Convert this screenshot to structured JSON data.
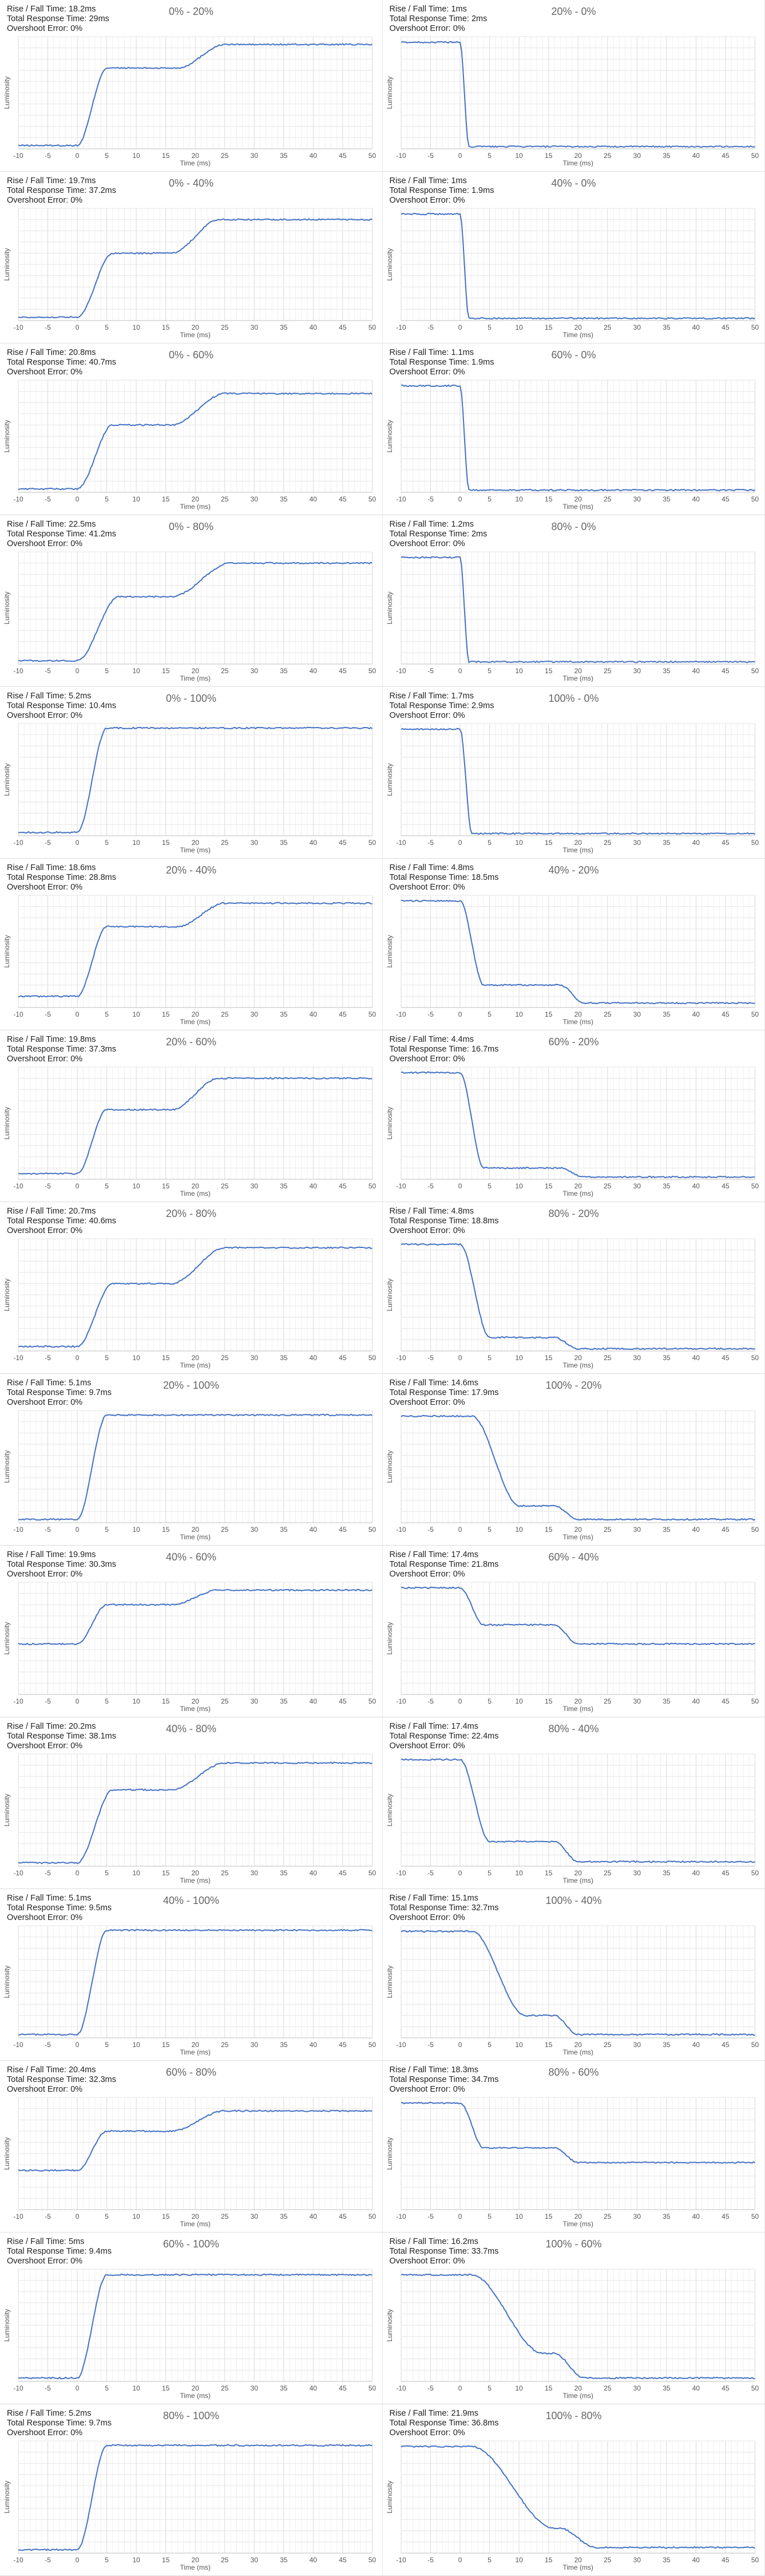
{
  "common": {
    "ylabel": "Luminosity",
    "xlabel": "Time (ms)",
    "rise_fall_label": "Rise / Fall Time:",
    "total_label": "Total Response Time:",
    "overshoot_label": "Overshoot Error:",
    "xticks": [
      "-10",
      "-5",
      "0",
      "5",
      "10",
      "15",
      "20",
      "25",
      "30",
      "35",
      "40",
      "45",
      "50"
    ],
    "line_color": "#4472c4"
  },
  "chart_data": [
    {
      "type": "line",
      "title": "0% - 20%",
      "rise_fall": "18.2ms",
      "total": "29ms",
      "overshoot": "0%",
      "start": 0.03,
      "end": 0.93,
      "onset": 0,
      "rise": 5,
      "plateau": 0.72,
      "second": 17,
      "second_dur": 8
    },
    {
      "type": "line",
      "title": "20% - 0%",
      "rise_fall": "1ms",
      "total": "2ms",
      "overshoot": "0%",
      "start": 0.95,
      "end": 0.02,
      "onset": 0,
      "rise": 1.5,
      "plateau": 0.02,
      "second": 20,
      "second_dur": 2
    },
    {
      "type": "line",
      "title": "0% - 40%",
      "rise_fall": "19.7ms",
      "total": "37.2ms",
      "overshoot": "0%",
      "start": 0.03,
      "end": 0.9,
      "onset": 0,
      "rise": 6,
      "plateau": 0.6,
      "second": 16,
      "second_dur": 8
    },
    {
      "type": "line",
      "title": "40% - 0%",
      "rise_fall": "1ms",
      "total": "1.9ms",
      "overshoot": "0%",
      "start": 0.95,
      "end": 0.02,
      "onset": 0,
      "rise": 1.5,
      "plateau": 0.02,
      "second": 20,
      "second_dur": 2
    },
    {
      "type": "line",
      "title": "0% - 60%",
      "rise_fall": "20.8ms",
      "total": "40.7ms",
      "overshoot": "0%",
      "start": 0.03,
      "end": 0.88,
      "onset": 0,
      "rise": 6,
      "plateau": 0.6,
      "second": 16,
      "second_dur": 9
    },
    {
      "type": "line",
      "title": "60% - 0%",
      "rise_fall": "1.1ms",
      "total": "1.9ms",
      "overshoot": "0%",
      "start": 0.95,
      "end": 0.02,
      "onset": 0,
      "rise": 1.5,
      "plateau": 0.02,
      "second": 20,
      "second_dur": 2
    },
    {
      "type": "line",
      "title": "0% - 80%",
      "rise_fall": "22.5ms",
      "total": "41.2ms",
      "overshoot": "0%",
      "start": 0.03,
      "end": 0.9,
      "onset": 0,
      "rise": 7,
      "plateau": 0.6,
      "second": 16,
      "second_dur": 10
    },
    {
      "type": "line",
      "title": "80% - 0%",
      "rise_fall": "1.2ms",
      "total": "2ms",
      "overshoot": "0%",
      "start": 0.95,
      "end": 0.02,
      "onset": 0,
      "rise": 1.5,
      "plateau": 0.02,
      "second": 20,
      "second_dur": 2
    },
    {
      "type": "line",
      "title": "0% - 100%",
      "rise_fall": "5.2ms",
      "total": "10.4ms",
      "overshoot": "0%",
      "start": 0.03,
      "end": 0.96,
      "onset": 0,
      "rise": 5,
      "plateau": 0.96,
      "second": 20,
      "second_dur": 2
    },
    {
      "type": "line",
      "title": "100% - 0%",
      "rise_fall": "1.7ms",
      "total": "2.9ms",
      "overshoot": "0%",
      "start": 0.95,
      "end": 0.02,
      "onset": 0,
      "rise": 2,
      "plateau": 0.02,
      "second": 20,
      "second_dur": 2
    },
    {
      "type": "line",
      "title": "20% - 40%",
      "rise_fall": "18.6ms",
      "total": "28.8ms",
      "overshoot": "0%",
      "start": 0.1,
      "end": 0.93,
      "onset": 0,
      "rise": 5,
      "plateau": 0.72,
      "second": 17,
      "second_dur": 8
    },
    {
      "type": "line",
      "title": "40% - 20%",
      "rise_fall": "4.8ms",
      "total": "18.5ms",
      "overshoot": "0%",
      "start": 0.95,
      "end": 0.04,
      "onset": 0,
      "rise": 4,
      "plateau": 0.2,
      "second": 17,
      "second_dur": 4
    },
    {
      "type": "line",
      "title": "20% - 60%",
      "rise_fall": "19.8ms",
      "total": "37.3ms",
      "overshoot": "0%",
      "start": 0.05,
      "end": 0.9,
      "onset": 0,
      "rise": 5,
      "plateau": 0.62,
      "second": 16,
      "second_dur": 8
    },
    {
      "type": "line",
      "title": "60% - 20%",
      "rise_fall": "4.4ms",
      "total": "16.7ms",
      "overshoot": "0%",
      "start": 0.95,
      "end": 0.02,
      "onset": 0,
      "rise": 4,
      "plateau": 0.1,
      "second": 17,
      "second_dur": 4
    },
    {
      "type": "line",
      "title": "20% - 80%",
      "rise_fall": "20.7ms",
      "total": "40.6ms",
      "overshoot": "0%",
      "start": 0.04,
      "end": 0.92,
      "onset": 0,
      "rise": 6,
      "plateau": 0.6,
      "second": 16,
      "second_dur": 9
    },
    {
      "type": "line",
      "title": "80% - 20%",
      "rise_fall": "4.8ms",
      "total": "18.8ms",
      "overshoot": "0%",
      "start": 0.95,
      "end": 0.02,
      "onset": 0,
      "rise": 5,
      "plateau": 0.12,
      "second": 16,
      "second_dur": 4
    },
    {
      "type": "line",
      "title": "20% - 100%",
      "rise_fall": "5.1ms",
      "total": "9.7ms",
      "overshoot": "0%",
      "start": 0.03,
      "end": 0.96,
      "onset": 0,
      "rise": 5,
      "plateau": 0.96,
      "second": 20,
      "second_dur": 2
    },
    {
      "type": "line",
      "title": "100% - 20%",
      "rise_fall": "14.6ms",
      "total": "17.9ms",
      "overshoot": "0%",
      "start": 0.95,
      "end": 0.03,
      "onset": 2,
      "rise": 8,
      "plateau": 0.15,
      "second": 16,
      "second_dur": 4
    },
    {
      "type": "line",
      "title": "40% - 60%",
      "rise_fall": "19.9ms",
      "total": "30.3ms",
      "overshoot": "0%",
      "start": 0.45,
      "end": 0.93,
      "onset": 0,
      "rise": 5,
      "plateau": 0.8,
      "second": 16,
      "second_dur": 8
    },
    {
      "type": "line",
      "title": "60% - 40%",
      "rise_fall": "17.4ms",
      "total": "21.8ms",
      "overshoot": "0%",
      "start": 0.95,
      "end": 0.45,
      "onset": 0,
      "rise": 4,
      "plateau": 0.62,
      "second": 16,
      "second_dur": 4
    },
    {
      "type": "line",
      "title": "40% - 80%",
      "rise_fall": "20.2ms",
      "total": "38.1ms",
      "overshoot": "0%",
      "start": 0.03,
      "end": 0.92,
      "onset": 0,
      "rise": 6,
      "plateau": 0.68,
      "second": 16,
      "second_dur": 9
    },
    {
      "type": "line",
      "title": "80% - 40%",
      "rise_fall": "17.4ms",
      "total": "22.4ms",
      "overshoot": "0%",
      "start": 0.95,
      "end": 0.04,
      "onset": 0,
      "rise": 5,
      "plateau": 0.22,
      "second": 16,
      "second_dur": 4
    },
    {
      "type": "line",
      "title": "40% - 100%",
      "rise_fall": "5.1ms",
      "total": "9.5ms",
      "overshoot": "0%",
      "start": 0.03,
      "end": 0.96,
      "onset": 0,
      "rise": 5,
      "plateau": 0.96,
      "second": 20,
      "second_dur": 2
    },
    {
      "type": "line",
      "title": "100% - 40%",
      "rise_fall": "15.1ms",
      "total": "32.7ms",
      "overshoot": "0%",
      "start": 0.95,
      "end": 0.03,
      "onset": 2,
      "rise": 9,
      "plateau": 0.2,
      "second": 16,
      "second_dur": 4
    },
    {
      "type": "line",
      "title": "60% - 80%",
      "rise_fall": "20.4ms",
      "total": "32.3ms",
      "overshoot": "0%",
      "start": 0.35,
      "end": 0.88,
      "onset": 0,
      "rise": 5,
      "plateau": 0.7,
      "second": 16,
      "second_dur": 9
    },
    {
      "type": "line",
      "title": "80% - 60%",
      "rise_fall": "18.3ms",
      "total": "34.7ms",
      "overshoot": "0%",
      "start": 0.95,
      "end": 0.42,
      "onset": 0,
      "rise": 4,
      "plateau": 0.55,
      "second": 16,
      "second_dur": 4
    },
    {
      "type": "line",
      "title": "60% - 100%",
      "rise_fall": "5ms",
      "total": "9.4ms",
      "overshoot": "0%",
      "start": 0.03,
      "end": 0.95,
      "onset": 0,
      "rise": 5,
      "plateau": 0.95,
      "second": 20,
      "second_dur": 2
    },
    {
      "type": "line",
      "title": "100% - 60%",
      "rise_fall": "16.2ms",
      "total": "33.7ms",
      "overshoot": "0%",
      "start": 0.95,
      "end": 0.03,
      "onset": 2,
      "rise": 12,
      "plateau": 0.25,
      "second": 16,
      "second_dur": 5
    },
    {
      "type": "line",
      "title": "80% - 100%",
      "rise_fall": "5.2ms",
      "total": "9.7ms",
      "overshoot": "0%",
      "start": 0.03,
      "end": 0.96,
      "onset": 0,
      "rise": 5,
      "plateau": 0.96,
      "second": 20,
      "second_dur": 2
    },
    {
      "type": "line",
      "title": "100% - 80%",
      "rise_fall": "21.9ms",
      "total": "36.8ms",
      "overshoot": "0%",
      "start": 0.95,
      "end": 0.05,
      "onset": 2,
      "rise": 14,
      "plateau": 0.22,
      "second": 17,
      "second_dur": 6
    }
  ]
}
